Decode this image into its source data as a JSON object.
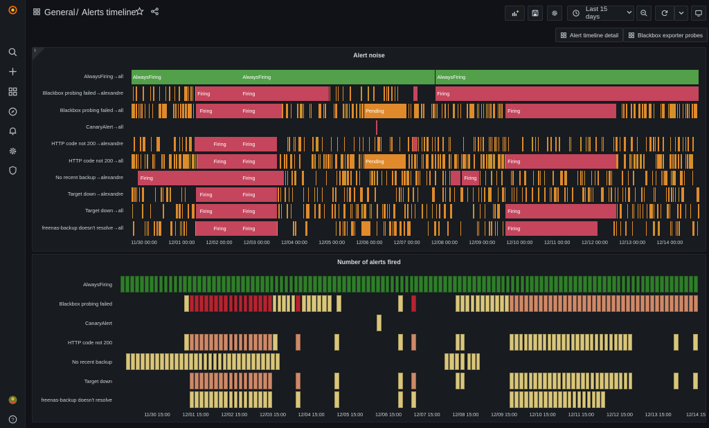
{
  "breadcrumb": {
    "folder": "General",
    "separator": "/",
    "dashboard": "Alerts timeline"
  },
  "toolbar": {
    "time_range": "Last 15 days"
  },
  "links": {
    "alert_timeline_detail": "Alert timeline detail",
    "blackbox_exporter_probes": "Blackbox exporter probes"
  },
  "icons": {
    "logo": "grafana-logo-icon",
    "search": "search-icon",
    "create": "plus-icon",
    "dashboards": "dashboards-grid-icon",
    "explore": "compass-icon",
    "alerting": "bell-icon",
    "configuration": "gear-icon",
    "admin": "shield-icon",
    "profile": "avatar",
    "help": "help-icon"
  },
  "colors": {
    "firing": "#c4455c",
    "pending": "#e08a2c",
    "always": "#52a049",
    "fired_dark": "#2f7d2a",
    "fired_red": "#b52430",
    "fired_salmon": "#cf8968",
    "fired_yellow": "#d9c67a"
  },
  "panel1": {
    "title": "Alert noise",
    "info": "i",
    "rows": [
      {
        "label": "AlwaysFiring→all",
        "segments": [
          {
            "s": 0.0,
            "e": 8.07,
            "state": "always"
          },
          {
            "s": 8.1,
            "e": 15.1,
            "state": "always"
          }
        ],
        "labels": [
          {
            "t": 0.0,
            "text": "AlwaysFiring"
          },
          {
            "t": 2.92,
            "text": "AlwaysFiring"
          },
          {
            "t": 8.1,
            "text": "AlwaysFiring"
          }
        ]
      },
      {
        "label": "Blackbox probing failed→alexandre",
        "segments": [
          {
            "s": 1.72,
            "e": 5.25,
            "state": "firing"
          },
          {
            "s": 7.5,
            "e": 7.62,
            "state": "firing"
          },
          {
            "s": 8.1,
            "e": 15.1,
            "state": "firing"
          }
        ],
        "labels": [
          {
            "t": 1.72,
            "text": "Firing"
          },
          {
            "t": 2.92,
            "text": "Firing"
          },
          {
            "t": 8.1,
            "text": "Firing"
          }
        ]
      },
      {
        "label": "Blackbox probing failed→all",
        "segments": [
          {
            "s": 1.72,
            "e": 4.0,
            "state": "firing"
          },
          {
            "s": 6.2,
            "e": 7.3,
            "state": "pending"
          },
          {
            "s": 9.95,
            "e": 12.9,
            "state": "firing"
          }
        ],
        "labels": [
          {
            "t": 1.78,
            "text": "Firing"
          },
          {
            "t": 2.92,
            "text": "Firing"
          },
          {
            "t": 6.2,
            "text": "Pending"
          },
          {
            "t": 9.98,
            "text": "Firing"
          }
        ]
      },
      {
        "label": "CanaryAlert→all",
        "segments": [
          {
            "s": 6.5,
            "e": 6.54,
            "state": "firing"
          }
        ],
        "labels": []
      },
      {
        "label": "HTTP code not 200→alexandre",
        "segments": [
          {
            "s": 1.68,
            "e": 3.88,
            "state": "firing"
          },
          {
            "s": 7.48,
            "e": 7.62,
            "state": "firing"
          }
        ],
        "labels": [
          {
            "t": 2.15,
            "text": "Firing"
          },
          {
            "t": 2.92,
            "text": "Firing"
          }
        ]
      },
      {
        "label": "HTTP code not 200→all",
        "segments": [
          {
            "s": 1.75,
            "e": 3.88,
            "state": "firing"
          },
          {
            "s": 6.2,
            "e": 7.3,
            "state": "pending"
          },
          {
            "s": 9.95,
            "e": 12.9,
            "state": "firing"
          }
        ],
        "labels": [
          {
            "t": 2.15,
            "text": "Firing"
          },
          {
            "t": 2.92,
            "text": "Firing"
          },
          {
            "t": 6.2,
            "text": "Pending"
          },
          {
            "t": 9.98,
            "text": "Firing"
          }
        ]
      },
      {
        "label": "No recent backup→alexandre",
        "segments": [
          {
            "s": 0.17,
            "e": 4.05,
            "state": "firing"
          },
          {
            "s": 8.5,
            "e": 8.75,
            "state": "firing"
          },
          {
            "s": 8.8,
            "e": 9.25,
            "state": "firing"
          }
        ],
        "labels": [
          {
            "t": 0.2,
            "text": "Firing"
          },
          {
            "t": 2.92,
            "text": "Firing"
          },
          {
            "t": 8.82,
            "text": "Firing"
          }
        ]
      },
      {
        "label": "Target down→alexandre",
        "segments": [
          {
            "s": 1.72,
            "e": 3.88,
            "state": "firing"
          }
        ],
        "labels": [
          {
            "t": 1.78,
            "text": "Firing"
          },
          {
            "t": 2.92,
            "text": "Firing"
          }
        ]
      },
      {
        "label": "Target down→all",
        "segments": [
          {
            "s": 1.72,
            "e": 3.88,
            "state": "firing"
          },
          {
            "s": 9.95,
            "e": 12.9,
            "state": "firing"
          }
        ],
        "labels": [
          {
            "t": 1.78,
            "text": "Firing"
          },
          {
            "t": 2.92,
            "text": "Firing"
          },
          {
            "t": 9.98,
            "text": "Firing"
          }
        ]
      },
      {
        "label": "freenas-backup doesn't resolve→all",
        "segments": [
          {
            "s": 1.72,
            "e": 3.88,
            "state": "firing"
          },
          {
            "s": 9.95,
            "e": 12.4,
            "state": "firing"
          }
        ],
        "labels": [
          {
            "t": 2.15,
            "text": "Firing"
          },
          {
            "t": 2.92,
            "text": "Firing"
          },
          {
            "t": 9.98,
            "text": "Firing"
          }
        ]
      }
    ],
    "ticks": [
      "11/30 00:00",
      "12/01 00:00",
      "12/02 00:00",
      "12/03 00:00",
      "12/04 00:00",
      "12/05 00:00",
      "12/06 00:00",
      "12/07 00:00",
      "12/08 00:00",
      "12/09 00:00",
      "12/10 00:00",
      "12/11 00:00",
      "12/12 00:00",
      "12/13 00:00",
      "12/14 00:00"
    ]
  },
  "panel2": {
    "title": "Number of alerts fired",
    "rows": [
      {
        "label": "AlwaysFiring",
        "segments": [
          {
            "s": 0.0,
            "e": 15.0,
            "v": "dark"
          }
        ]
      },
      {
        "label": "Blackbox probing failed",
        "segments": [
          {
            "s": 1.65,
            "e": 1.8,
            "v": "yellow"
          },
          {
            "s": 1.8,
            "e": 3.95,
            "v": "red"
          },
          {
            "s": 3.95,
            "e": 4.55,
            "v": "yellow"
          },
          {
            "s": 4.55,
            "e": 4.7,
            "v": "red"
          },
          {
            "s": 4.7,
            "e": 5.5,
            "v": "yellow"
          },
          {
            "s": 5.6,
            "e": 5.75,
            "v": "yellow"
          },
          {
            "s": 7.2,
            "e": 7.35,
            "v": "yellow"
          },
          {
            "s": 7.55,
            "e": 7.7,
            "v": "red"
          },
          {
            "s": 8.7,
            "e": 10.1,
            "v": "yellow"
          },
          {
            "s": 10.1,
            "e": 15.0,
            "v": "salmon"
          }
        ]
      },
      {
        "label": "CanaryAlert",
        "segments": [
          {
            "s": 6.65,
            "e": 6.8,
            "v": "yellow"
          }
        ]
      },
      {
        "label": "HTTP code not 200",
        "segments": [
          {
            "s": 1.65,
            "e": 1.8,
            "v": "yellow"
          },
          {
            "s": 1.8,
            "e": 3.95,
            "v": "salmon"
          },
          {
            "s": 3.95,
            "e": 4.1,
            "v": "yellow"
          },
          {
            "s": 4.55,
            "e": 4.7,
            "v": "salmon"
          },
          {
            "s": 5.55,
            "e": 5.7,
            "v": "yellow"
          },
          {
            "s": 7.2,
            "e": 7.35,
            "v": "yellow"
          },
          {
            "s": 7.55,
            "e": 7.7,
            "v": "salmon"
          },
          {
            "s": 8.7,
            "e": 8.95,
            "v": "yellow"
          },
          {
            "s": 10.1,
            "e": 12.3,
            "v": "yellow"
          },
          {
            "s": 12.3,
            "e": 13.3,
            "v": "yellow"
          },
          {
            "s": 14.35,
            "e": 14.5,
            "v": "yellow"
          },
          {
            "s": 14.85,
            "e": 15.0,
            "v": "yellow"
          }
        ]
      },
      {
        "label": "No recent backup",
        "segments": [
          {
            "s": 0.15,
            "e": 4.15,
            "v": "yellow"
          },
          {
            "s": 8.4,
            "e": 8.95,
            "v": "yellow"
          },
          {
            "s": 9.0,
            "e": 9.35,
            "v": "yellow"
          }
        ]
      },
      {
        "label": "Target down",
        "segments": [
          {
            "s": 1.8,
            "e": 3.95,
            "v": "salmon"
          },
          {
            "s": 4.55,
            "e": 4.7,
            "v": "salmon"
          },
          {
            "s": 5.55,
            "e": 5.7,
            "v": "yellow"
          },
          {
            "s": 7.2,
            "e": 7.35,
            "v": "yellow"
          },
          {
            "s": 7.55,
            "e": 7.7,
            "v": "salmon"
          },
          {
            "s": 8.7,
            "e": 8.95,
            "v": "yellow"
          },
          {
            "s": 10.1,
            "e": 13.3,
            "v": "yellow"
          },
          {
            "s": 14.35,
            "e": 14.5,
            "v": "yellow"
          },
          {
            "s": 14.85,
            "e": 15.0,
            "v": "yellow"
          }
        ]
      },
      {
        "label": "freenas-backup doesn't resolve",
        "segments": [
          {
            "s": 1.8,
            "e": 3.95,
            "v": "yellow"
          },
          {
            "s": 4.55,
            "e": 4.7,
            "v": "yellow"
          },
          {
            "s": 5.55,
            "e": 5.7,
            "v": "yellow"
          },
          {
            "s": 7.2,
            "e": 7.35,
            "v": "yellow"
          },
          {
            "s": 7.55,
            "e": 7.7,
            "v": "yellow"
          },
          {
            "s": 10.1,
            "e": 12.6,
            "v": "yellow"
          }
        ]
      }
    ],
    "ticks": [
      "11/30 15:00",
      "12/01 15:00",
      "12/02 15:00",
      "12/03 15:00",
      "12/04 15:00",
      "12/05 15:00",
      "12/06 15:00",
      "12/07 15:00",
      "12/08 15:00",
      "12/09 15:00",
      "12/10 15:00",
      "12/11 15:00",
      "12/12 15:00",
      "12/13 15:00",
      "12/14 15"
    ]
  }
}
